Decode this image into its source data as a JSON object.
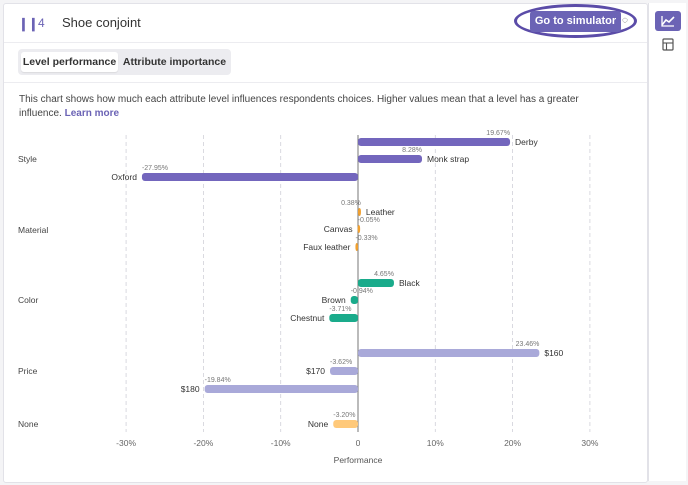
{
  "header": {
    "question_number": "4",
    "title": "Shoe conjoint",
    "simulator_button": "Go to simulator"
  },
  "tabs": [
    {
      "label": "Level performance",
      "active": true
    },
    {
      "label": "Attribute importance",
      "active": false
    }
  ],
  "description": {
    "text": "This chart shows how much each attribute level influences respondents choices. Higher values mean that a level has a greater influence. ",
    "link": "Learn more"
  },
  "sidebar": {
    "icons": [
      "chart-icon",
      "table-icon"
    ]
  },
  "colors": {
    "accent": "#6b63b5",
    "Style": "#7366bd",
    "Material": "#f0a030",
    "Color": "#1aab8b",
    "Price": "#a9a9d9",
    "None": "#ffc97a"
  },
  "chart_data": {
    "type": "bar",
    "orientation": "horizontal",
    "xlabel": "Performance",
    "xlim": [
      -30,
      30
    ],
    "xticks": [
      -30,
      -20,
      -10,
      0,
      10,
      20,
      30
    ],
    "xtick_labels": [
      "-30%",
      "-20%",
      "-10%",
      "0",
      "10%",
      "20%",
      "30%"
    ],
    "grid": true,
    "groups": [
      {
        "attribute": "Style",
        "levels": [
          {
            "label": "Derby",
            "value": 19.67,
            "value_label": "19.67%"
          },
          {
            "label": "Monk strap",
            "value": 8.28,
            "value_label": "8.28%"
          },
          {
            "label": "Oxford",
            "value": -27.95,
            "value_label": "-27.95%"
          }
        ]
      },
      {
        "attribute": "Material",
        "levels": [
          {
            "label": "Leather",
            "value": 0.38,
            "value_label": "0.38%"
          },
          {
            "label": "Canvas",
            "value": -0.05,
            "value_label": "-0.05%"
          },
          {
            "label": "Faux leather",
            "value": -0.33,
            "value_label": "-0.33%"
          }
        ]
      },
      {
        "attribute": "Color",
        "levels": [
          {
            "label": "Black",
            "value": 4.65,
            "value_label": "4.65%"
          },
          {
            "label": "Brown",
            "value": -0.94,
            "value_label": "-0.94%"
          },
          {
            "label": "Chestnut",
            "value": -3.71,
            "value_label": "-3.71%"
          }
        ]
      },
      {
        "attribute": "Price",
        "levels": [
          {
            "label": "$160",
            "value": 23.46,
            "value_label": "23.46%"
          },
          {
            "label": "$170",
            "value": -3.62,
            "value_label": "-3.62%"
          },
          {
            "label": "$180",
            "value": -19.84,
            "value_label": "-19.84%"
          }
        ]
      },
      {
        "attribute": "None",
        "levels": [
          {
            "label": "None",
            "value": -3.2,
            "value_label": "-3.20%"
          }
        ]
      }
    ]
  }
}
